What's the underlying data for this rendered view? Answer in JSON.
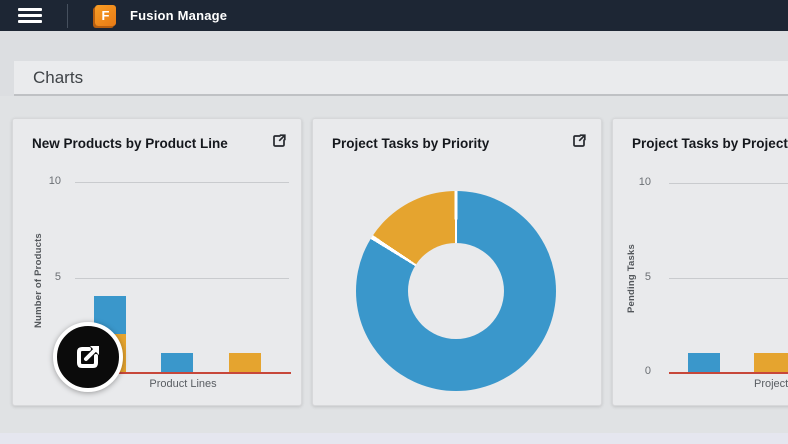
{
  "topbar": {
    "app_title": "Fusion Manage",
    "logo_letter": "F"
  },
  "page": {
    "title": "Charts"
  },
  "colors": {
    "topbar_bg": "#1D2634",
    "blue": "#3A97CB",
    "orange": "#E5A42F",
    "axis_red": "#C7473A",
    "logo_orange": "#F08C1E"
  },
  "cards": [
    {
      "title": "New Products by Product Line",
      "expand_icon": "open-in-new-icon"
    },
    {
      "title": "Project Tasks by Priority",
      "expand_icon": "open-in-new-icon"
    },
    {
      "title": "Project Tasks by Project an",
      "expand_icon": "open-in-new-icon"
    }
  ],
  "overlay": {
    "type": "click-highlight",
    "icon": "open-in-new-icon"
  },
  "chart_data": [
    {
      "type": "bar",
      "stacked": true,
      "title": "New Products by Product Line",
      "xlabel": "Product Lines",
      "ylabel": "Number of Products",
      "ylim": [
        0,
        10
      ],
      "yticks": [
        "10",
        "5"
      ],
      "grid": true,
      "num_categories": 3,
      "series": [
        {
          "color": "#E5A42F",
          "values": [
            2,
            0,
            1
          ]
        },
        {
          "color": "#3A97CB",
          "values": [
            2,
            1,
            0
          ]
        }
      ],
      "baseline_color": "#C7473A"
    },
    {
      "type": "donut",
      "title": "Project Tasks by Priority",
      "start_angle_deg": 0,
      "inner_radius_ratio": 0.47,
      "slices": [
        {
          "color": "#3A97CB",
          "percent": 84
        },
        {
          "color": "#E5A42F",
          "percent": 16
        }
      ]
    },
    {
      "type": "bar",
      "stacked": false,
      "title": "Project Tasks by Project an",
      "xlabel": "Projects",
      "ylabel": "Pending Tasks",
      "ylim": [
        0,
        10
      ],
      "yticks": [
        "10",
        "5",
        "0"
      ],
      "grid": true,
      "num_categories": 2,
      "series": [
        {
          "color": "#3A97CB",
          "values": [
            1,
            0
          ]
        },
        {
          "color": "#E5A42F",
          "values": [
            0,
            1
          ]
        }
      ],
      "baseline_color": "#C7473A"
    }
  ]
}
